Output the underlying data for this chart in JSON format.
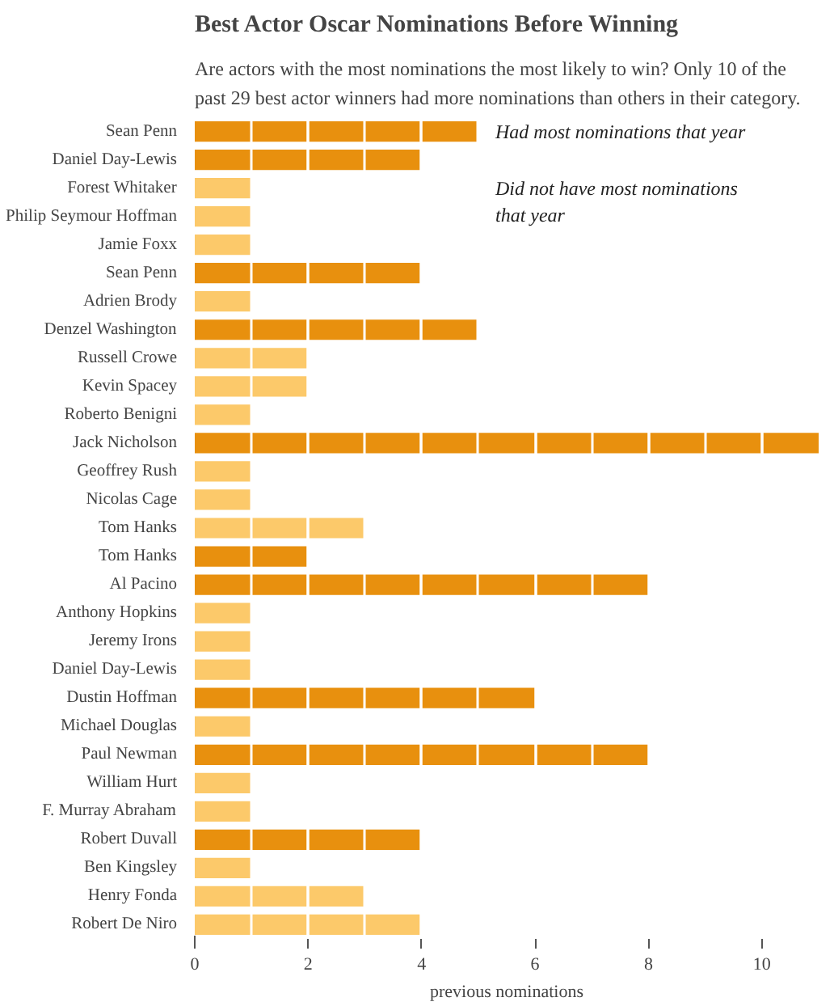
{
  "chart_data": {
    "type": "bar",
    "orientation": "horizontal",
    "title": "Best Actor Oscar Nominations Before Winning",
    "subtitle": "Are actors with the most nominations the most likely to win? Only 10 of the past 29 best actor winners had more nominations than others in their category.",
    "xlabel": "previous nominations",
    "categories": [
      "Sean Penn",
      "Daniel Day-Lewis",
      "Forest Whitaker",
      "Philip Seymour Hoffman",
      "Jamie Foxx",
      "Sean Penn",
      "Adrien Brody",
      "Denzel Washington",
      "Russell Crowe",
      "Kevin Spacey",
      "Roberto Benigni",
      "Jack Nicholson",
      "Geoffrey Rush",
      "Nicolas Cage",
      "Tom Hanks",
      "Tom Hanks",
      "Al Pacino",
      "Anthony Hopkins",
      "Jeremy Irons",
      "Daniel Day-Lewis",
      "Dustin Hoffman",
      "Michael Douglas",
      "Paul Newman",
      "William Hurt",
      "F. Murray Abraham",
      "Robert Duvall",
      "Ben Kingsley",
      "Henry Fonda",
      "Robert De Niro"
    ],
    "series": [
      {
        "name": "Had most nominations that year",
        "color": "#e8900e",
        "values": [
          5,
          4,
          null,
          null,
          null,
          4,
          null,
          5,
          null,
          null,
          null,
          11,
          null,
          null,
          null,
          2,
          8,
          null,
          null,
          null,
          6,
          null,
          8,
          null,
          null,
          4,
          null,
          null,
          null
        ]
      },
      {
        "name": "Did not have most nominations that year",
        "color": "#fcc96a",
        "values": [
          null,
          null,
          1,
          1,
          1,
          null,
          1,
          null,
          2,
          2,
          1,
          null,
          1,
          1,
          3,
          null,
          null,
          1,
          1,
          1,
          null,
          1,
          null,
          1,
          1,
          null,
          1,
          3,
          4
        ]
      }
    ],
    "xlim": [
      0,
      11
    ],
    "xticks": [
      0,
      2,
      4,
      6,
      8,
      10
    ],
    "grid": "x"
  }
}
